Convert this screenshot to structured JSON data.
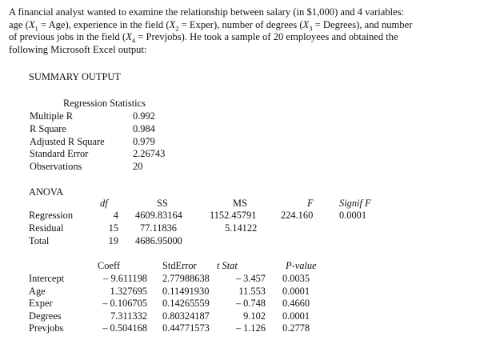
{
  "intro": {
    "p1": "A financial analyst wanted to examine the relationship between salary (in $1,000) and 4 variables:",
    "p2a": "age (",
    "x1": "X",
    "x1sub": "1",
    "p2b": " = Age), experience in the field (",
    "x2": "X",
    "x2sub": "2",
    "p2c": " = Exper), number of degrees (",
    "x3": "X",
    "x3sub": "3",
    "p2d": " = Degrees), and number",
    "p3a": "of previous jobs in the field (",
    "x4": "X",
    "x4sub": "4",
    "p3b": " = Prevjobs).  He took a sample of 20 employees and obtained the",
    "p4": "following Microsoft Excel output:"
  },
  "summary_title": "SUMMARY OUTPUT",
  "regression_stats": {
    "title": "Regression Statistics",
    "rows": [
      {
        "label": "Multiple R",
        "value": "0.992"
      },
      {
        "label": "R Square",
        "value": "0.984"
      },
      {
        "label": "Adjusted R Square",
        "value": "0.979"
      },
      {
        "label": "Standard Error",
        "value": "2.26743"
      },
      {
        "label": "Observations",
        "value": "20"
      }
    ]
  },
  "anova": {
    "title": "ANOVA",
    "headers": {
      "df": "df",
      "ss": "SS",
      "ms": "MS",
      "f": "F",
      "sig": "Signif F"
    },
    "rows": [
      {
        "label": "Regression",
        "df": "4",
        "ss": "4609.83164",
        "ms": "1152.45791",
        "f": "224.160",
        "sig": "0.0001"
      },
      {
        "label": "Residual",
        "df": "15",
        "ss": "77.11836",
        "ms": "5.14122",
        "f": "",
        "sig": ""
      },
      {
        "label": "Total",
        "df": "19",
        "ss": "4686.95000",
        "ms": "",
        "f": "",
        "sig": ""
      }
    ]
  },
  "coefficients": {
    "headers": {
      "coeff": "Coeff",
      "se": "StdError",
      "t": "t Stat",
      "p": "P-value"
    },
    "rows": [
      {
        "label": "Intercept",
        "coeff": "– 9.611198",
        "se": "2.77988638",
        "t": "– 3.457",
        "p": "0.0035"
      },
      {
        "label": "Age",
        "coeff": "1.327695",
        "se": "0.11491930",
        "t": "11.553",
        "p": "0.0001"
      },
      {
        "label": "Exper",
        "coeff": "– 0.106705",
        "se": "0.14265559",
        "t": "– 0.748",
        "p": "0.4660"
      },
      {
        "label": "Degrees",
        "coeff": "7.311332",
        "se": "0.80324187",
        "t": "9.102",
        "p": "0.0001"
      },
      {
        "label": "Prevjobs",
        "coeff": "– 0.504168",
        "se": "0.44771573",
        "t": "– 1.126",
        "p": "0.2778"
      }
    ]
  }
}
